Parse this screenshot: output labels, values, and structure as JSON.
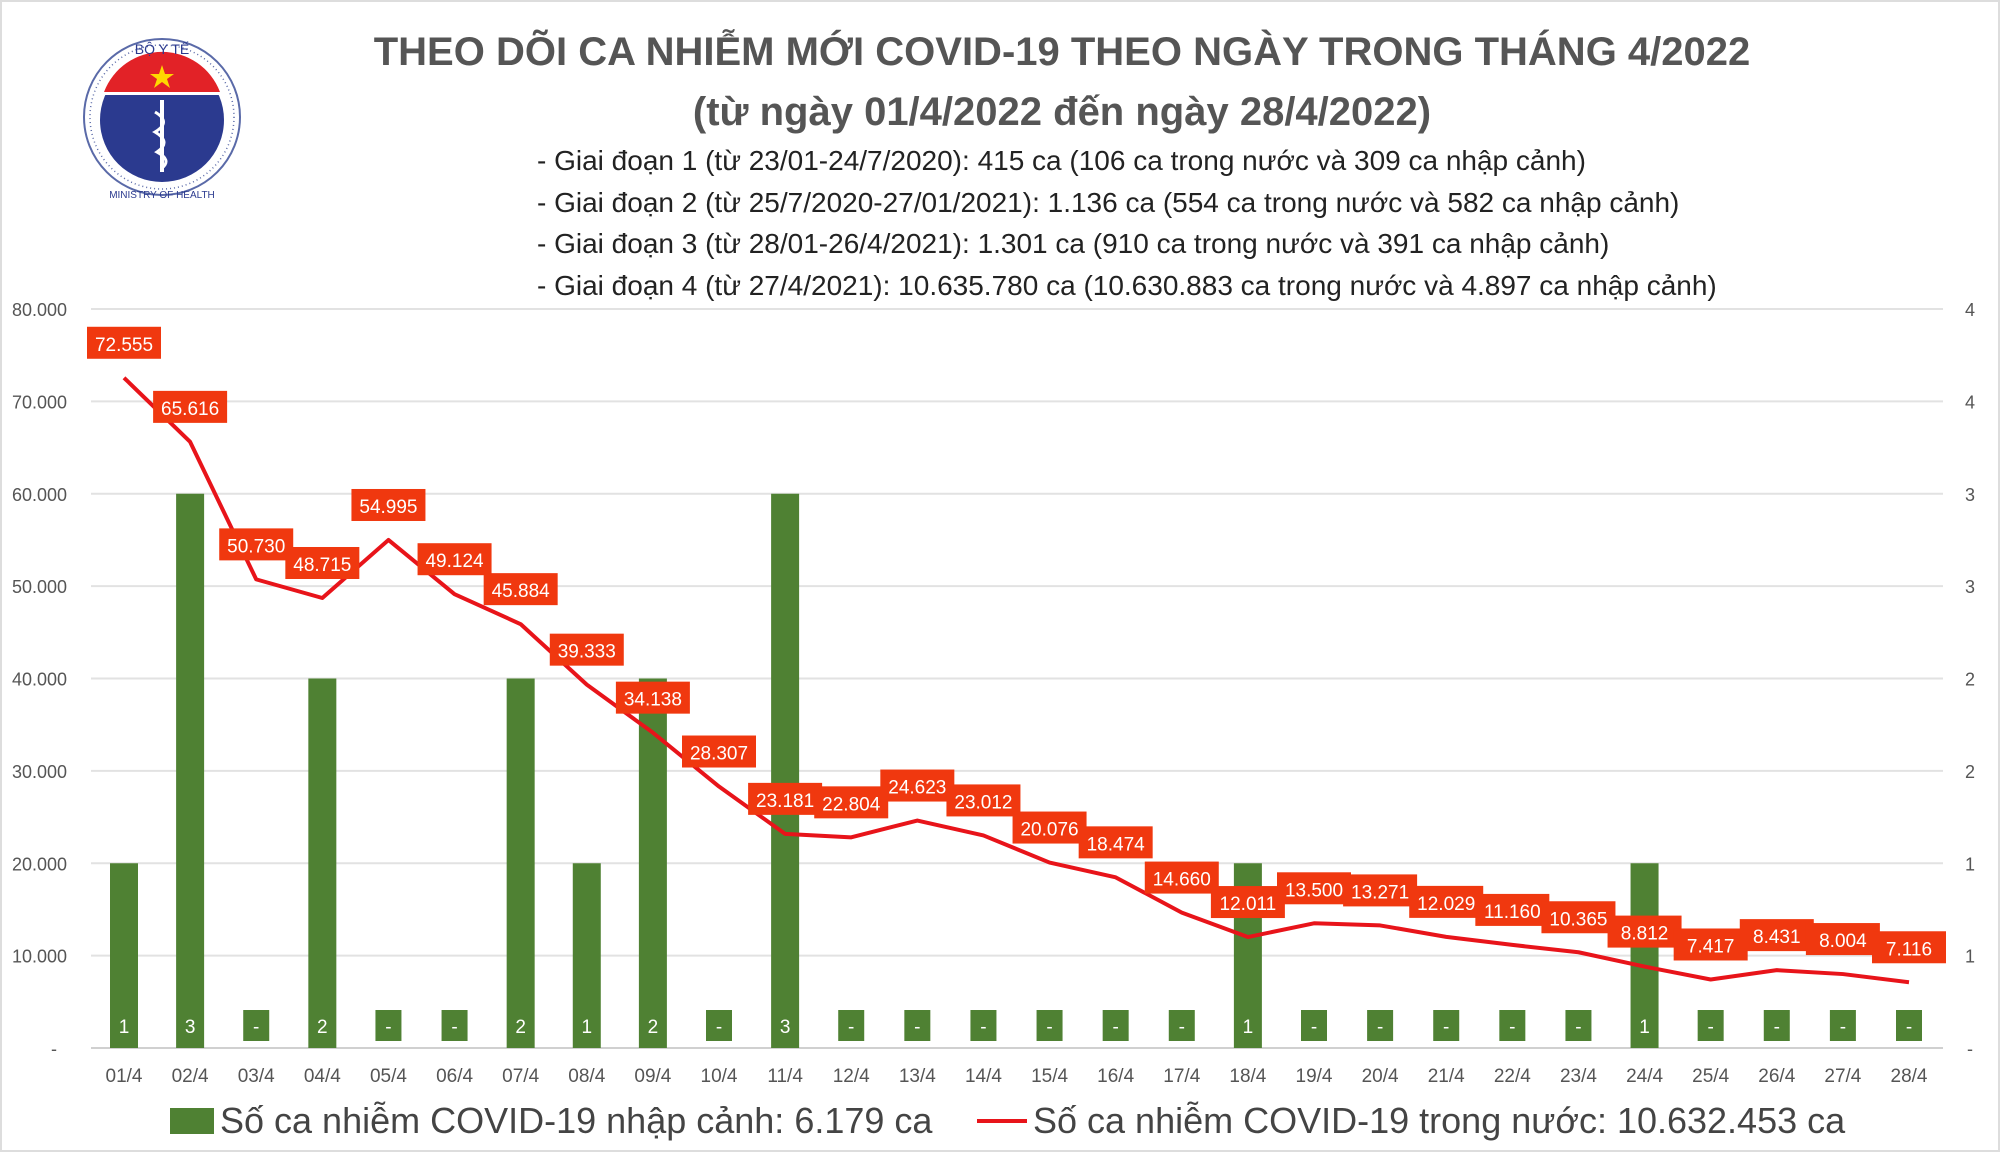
{
  "logo": {
    "top_text": "BỘ Y TẾ",
    "bottom_text": "MINISTRY OF HEALTH"
  },
  "title": "THEO DÕI CA NHIỄM MỚI COVID-19 THEO NGÀY TRONG THÁNG 4/2022",
  "subtitle": "(từ ngày 01/4/2022 đến ngày 28/4/2022)",
  "notes": [
    "- Giai đoạn 1 (từ 23/01-24/7/2020): 415 ca (106 ca trong nước và 309 ca nhập cảnh)",
    "- Giai đoạn 2 (từ 25/7/2020-27/01/2021): 1.136 ca (554 ca trong nước và 582 ca nhập cảnh)",
    "- Giai đoạn 3 (từ 28/01-26/4/2021): 1.301 ca (910 ca trong nước và 391 ca nhập cảnh)",
    "- Giai đoạn 4 (từ 27/4/2021): 10.635.780 ca (10.630.883 ca trong nước và 4.897 ca nhập cảnh)"
  ],
  "chart_data": {
    "type": "bar+line",
    "categories": [
      "01/4",
      "02/4",
      "03/4",
      "04/4",
      "05/4",
      "06/4",
      "07/4",
      "08/4",
      "09/4",
      "10/4",
      "11/4",
      "12/4",
      "13/4",
      "14/4",
      "15/4",
      "16/4",
      "17/4",
      "18/4",
      "19/4",
      "20/4",
      "21/4",
      "22/4",
      "23/4",
      "24/4",
      "25/4",
      "26/4",
      "27/4",
      "28/4"
    ],
    "series": [
      {
        "name": "Số ca nhiễm COVID-19 nhập cảnh: 6.179 ca",
        "type": "bar",
        "axis": "right",
        "color": "#4f8133",
        "values": [
          1,
          3,
          0,
          2,
          0,
          0,
          2,
          1,
          2,
          0,
          3,
          0,
          0,
          0,
          0,
          0,
          0,
          1,
          0,
          0,
          0,
          0,
          0,
          1,
          0,
          0,
          0,
          0
        ]
      },
      {
        "name": "Số ca nhiễm COVID-19 trong nước: 10.632.453 ca",
        "type": "line",
        "axis": "left",
        "color": "#e8141a",
        "values": [
          72555,
          65616,
          50730,
          48715,
          54995,
          49124,
          45884,
          39333,
          34138,
          28307,
          23181,
          22804,
          24623,
          23012,
          20076,
          18474,
          14660,
          12011,
          13500,
          13271,
          12029,
          11160,
          10365,
          8812,
          7417,
          8431,
          8004,
          7116
        ]
      }
    ],
    "left_axis": {
      "ylim": [
        0,
        80000
      ],
      "ticks": [
        "-",
        "10.000",
        "20.000",
        "30.000",
        "40.000",
        "50.000",
        "60.000",
        "70.000",
        "80.000"
      ]
    },
    "right_axis": {
      "ylim": [
        0,
        4
      ],
      "ticks": [
        "-",
        "1",
        "1",
        "2",
        "2",
        "3",
        "3",
        "4",
        "4"
      ]
    },
    "label_color": "#f0380f",
    "grid": true,
    "legend": "bottom"
  }
}
